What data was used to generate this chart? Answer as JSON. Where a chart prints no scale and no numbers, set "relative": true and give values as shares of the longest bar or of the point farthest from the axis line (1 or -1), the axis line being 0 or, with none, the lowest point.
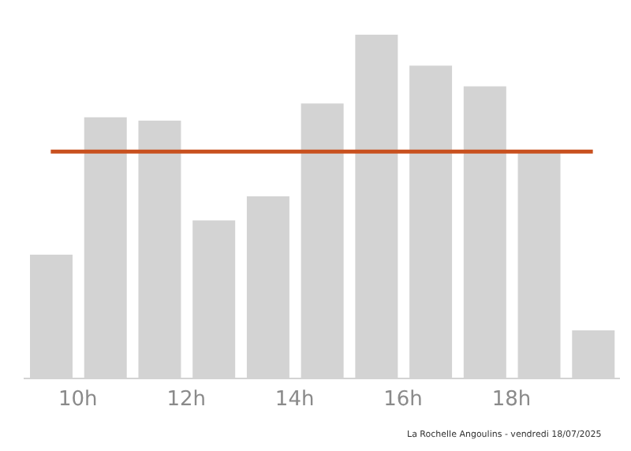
{
  "chart_data": {
    "type": "bar",
    "relative": true,
    "x": [
      9.5,
      10.5,
      11.5,
      12.5,
      13.5,
      14.5,
      15.5,
      16.5,
      17.5,
      18.5,
      19.5
    ],
    "xlim": [
      9,
      20
    ],
    "xticks": [
      {
        "value": 10,
        "label": "10h"
      },
      {
        "value": 12,
        "label": "12h"
      },
      {
        "value": 14,
        "label": "14h"
      },
      {
        "value": 16,
        "label": "16h"
      },
      {
        "value": 18,
        "label": "18h"
      }
    ],
    "values": [
      0.36,
      0.76,
      0.75,
      0.46,
      0.53,
      0.8,
      1,
      0.91,
      0.85,
      0.66,
      0.14
    ],
    "color": "#d3d3d3",
    "ref_lines": [
      {
        "axis": "y",
        "value": 0.66,
        "color": "#c8501e"
      }
    ],
    "annotations": [
      "La Rochelle Angoulins - vendredi 18/07/2025"
    ],
    "grid": false,
    "legend": false
  }
}
